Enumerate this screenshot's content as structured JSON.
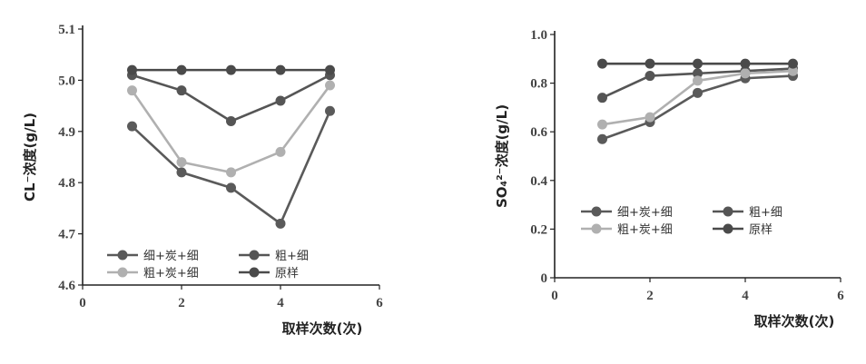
{
  "chart_data": [
    {
      "type": "line",
      "xlabel": "取样次数(次)",
      "ylabel": "CL⁻浓度(g/L)",
      "xlim": [
        0,
        6
      ],
      "ylim": [
        4.6,
        5.1
      ],
      "xticks": [
        "0",
        "2",
        "4",
        "6"
      ],
      "yticks": [
        "4.6",
        "4.7",
        "4.8",
        "4.9",
        "5.0",
        "5.1"
      ],
      "grid": false,
      "legend_position": "bottom-left",
      "x": [
        1,
        2,
        3,
        4,
        5
      ],
      "series": [
        {
          "name": "细+炭+细",
          "color": "#5a5a5a",
          "values": [
            4.91,
            4.82,
            4.79,
            4.72,
            4.94
          ]
        },
        {
          "name": "粗+细",
          "color": "#555555",
          "values": [
            5.01,
            4.98,
            4.92,
            4.96,
            5.01
          ]
        },
        {
          "name": "粗+炭+细",
          "color": "#b0b0b0",
          "values": [
            4.98,
            4.84,
            4.82,
            4.86,
            4.99
          ]
        },
        {
          "name": "原样",
          "color": "#4a4a4a",
          "values": [
            5.02,
            5.02,
            5.02,
            5.02,
            5.02
          ]
        }
      ]
    },
    {
      "type": "line",
      "xlabel": "取样次数(次)",
      "ylabel": "SO₄²⁻浓度(g/L)",
      "xlim": [
        0,
        6
      ],
      "ylim": [
        0,
        1.0
      ],
      "xticks": [
        "0",
        "2",
        "4",
        "6"
      ],
      "yticks": [
        "0",
        "0.2",
        "0.4",
        "0.6",
        "0.8",
        "1.0"
      ],
      "grid": false,
      "legend_position": "middle-left",
      "x": [
        1,
        2,
        3,
        4,
        5
      ],
      "series": [
        {
          "name": "细+炭+细",
          "color": "#5a5a5a",
          "values": [
            0.57,
            0.64,
            0.76,
            0.82,
            0.83
          ]
        },
        {
          "name": "粗+细",
          "color": "#555555",
          "values": [
            0.74,
            0.83,
            0.84,
            0.85,
            0.86
          ]
        },
        {
          "name": "粗+炭+细",
          "color": "#b0b0b0",
          "values": [
            0.63,
            0.66,
            0.81,
            0.84,
            0.85
          ]
        },
        {
          "name": "原样",
          "color": "#4a4a4a",
          "values": [
            0.88,
            0.88,
            0.88,
            0.88,
            0.88
          ]
        }
      ]
    }
  ]
}
